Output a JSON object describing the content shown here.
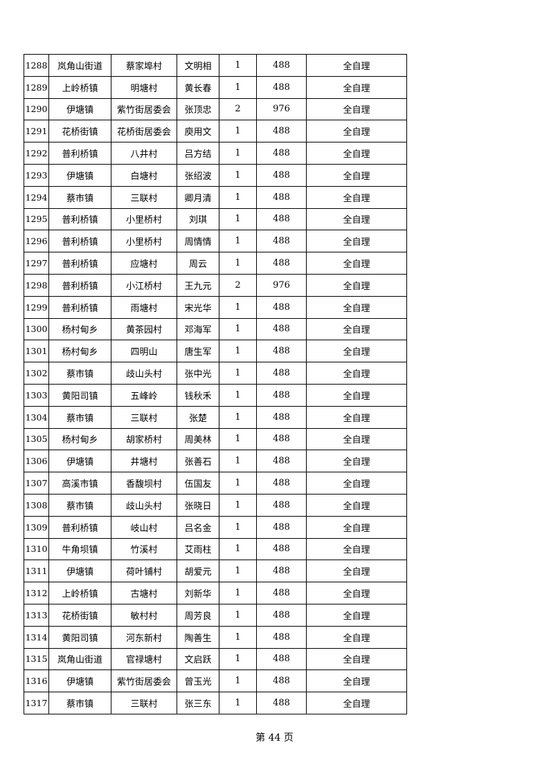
{
  "rows": [
    [
      "1288",
      "岚角山街道",
      "蔡家埠村",
      "文明相",
      "1",
      "488",
      "全自理"
    ],
    [
      "1289",
      "上岭桥镇",
      "明塘村",
      "黄长春",
      "1",
      "488",
      "全自理"
    ],
    [
      "1290",
      "伊塘镇",
      "紫竹街居委会",
      "张顶忠",
      "2",
      "976",
      "全自理"
    ],
    [
      "1291",
      "花桥街镇",
      "花桥街居委会",
      "庾用文",
      "1",
      "488",
      "全自理"
    ],
    [
      "1292",
      "普利桥镇",
      "八井村",
      "吕方结",
      "1",
      "488",
      "全自理"
    ],
    [
      "1293",
      "伊塘镇",
      "白塘村",
      "张绍波",
      "1",
      "488",
      "全自理"
    ],
    [
      "1294",
      "蔡市镇",
      "三联村",
      "卿月清",
      "1",
      "488",
      "全自理"
    ],
    [
      "1295",
      "普利桥镇",
      "小里桥村",
      "刘琪",
      "1",
      "488",
      "全自理"
    ],
    [
      "1296",
      "普利桥镇",
      "小里桥村",
      "周情情",
      "1",
      "488",
      "全自理"
    ],
    [
      "1297",
      "普利桥镇",
      "应塘村",
      "周云",
      "1",
      "488",
      "全自理"
    ],
    [
      "1298",
      "普利桥镇",
      "小江桥村",
      "王九元",
      "2",
      "976",
      "全自理"
    ],
    [
      "1299",
      "普利桥镇",
      "雨塘村",
      "宋光华",
      "1",
      "488",
      "全自理"
    ],
    [
      "1300",
      "杨村甸乡",
      "黄茶园村",
      "邓海军",
      "1",
      "488",
      "全自理"
    ],
    [
      "1301",
      "杨村甸乡",
      "四明山",
      "唐生军",
      "1",
      "488",
      "全自理"
    ],
    [
      "1302",
      "蔡市镇",
      "歧山头村",
      "张中光",
      "1",
      "488",
      "全自理"
    ],
    [
      "1303",
      "黄阳司镇",
      "五峰岭",
      "钱秋禾",
      "1",
      "488",
      "全自理"
    ],
    [
      "1304",
      "蔡市镇",
      "三联村",
      "张楚",
      "1",
      "488",
      "全自理"
    ],
    [
      "1305",
      "杨村甸乡",
      "胡家桥村",
      "周美林",
      "1",
      "488",
      "全自理"
    ],
    [
      "1306",
      "伊塘镇",
      "井塘村",
      "张善石",
      "1",
      "488",
      "全自理"
    ],
    [
      "1307",
      "高溪市镇",
      "香馥坝村",
      "伍国友",
      "1",
      "488",
      "全自理"
    ],
    [
      "1308",
      "蔡市镇",
      "歧山头村",
      "张晓日",
      "1",
      "488",
      "全自理"
    ],
    [
      "1309",
      "普利桥镇",
      "岐山村",
      "吕名金",
      "1",
      "488",
      "全自理"
    ],
    [
      "1310",
      "牛角坝镇",
      "竹溪村",
      "艾雨柱",
      "1",
      "488",
      "全自理"
    ],
    [
      "1311",
      "伊塘镇",
      "荷叶铺村",
      "胡爱元",
      "1",
      "488",
      "全自理"
    ],
    [
      "1312",
      "上岭桥镇",
      "古塘村",
      "刘新华",
      "1",
      "488",
      "全自理"
    ],
    [
      "1313",
      "花桥街镇",
      "敏村村",
      "周芳良",
      "1",
      "488",
      "全自理"
    ],
    [
      "1314",
      "黄阳司镇",
      "河东新村",
      "陶善生",
      "1",
      "488",
      "全自理"
    ],
    [
      "1315",
      "岚角山街道",
      "官禄塘村",
      "文启跃",
      "1",
      "488",
      "全自理"
    ],
    [
      "1316",
      "伊塘镇",
      "紫竹街居委会",
      "曾玉光",
      "1",
      "488",
      "全自理"
    ],
    [
      "1317",
      "蔡市镇",
      "三联村",
      "张三东",
      "1",
      "488",
      "全自理"
    ]
  ],
  "footer": "第 44 页"
}
